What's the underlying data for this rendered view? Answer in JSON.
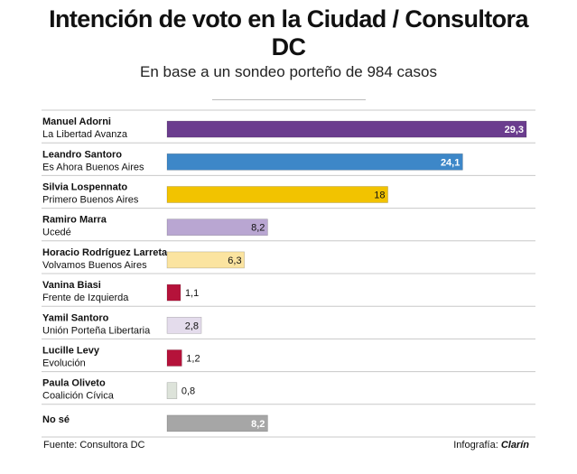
{
  "header": {
    "title_line1": "Intención de voto en la Ciudad / Consultora",
    "title_line2": "DC",
    "subtitle": "En base a un sondeo porteño de 984 casos"
  },
  "footer": {
    "source": "Fuente: Consultora DC",
    "credit_prefix": "Infografía: ",
    "credit_brand": "Clarín"
  },
  "chart_data": {
    "type": "bar",
    "orientation": "horizontal",
    "title": "Intención de voto en la Ciudad / Consultora DC",
    "subtitle": "En base a un sondeo porteño de 984 casos",
    "xlim": [
      0,
      29.3
    ],
    "grid": false,
    "rows": [
      {
        "name": "Manuel Adorni",
        "party": "La Libertad Avanza",
        "value": 29.3,
        "label": "29,3",
        "color": "#6b3d8e",
        "label_inside": true,
        "label_dark": false
      },
      {
        "name": "Leandro Santoro",
        "party": "Es Ahora Buenos Aires",
        "value": 24.1,
        "label": "24,1",
        "color": "#3d87c8",
        "label_inside": true,
        "label_dark": false
      },
      {
        "name": "Silvia Lospennato",
        "party": "Primero Buenos Aires",
        "value": 18,
        "label": "18",
        "color": "#f2c300",
        "label_inside": true,
        "label_dark": true
      },
      {
        "name": "Ramiro Marra",
        "party": "Ucedé",
        "value": 8.2,
        "label": "8,2",
        "color": "#b9a6d2",
        "label_inside": true,
        "label_dark": true
      },
      {
        "name": "Horacio Rodríguez Larreta",
        "party": "Volvamos Buenos Aires",
        "value": 6.3,
        "label": "6,3",
        "color": "#fbe4a0",
        "label_inside": true,
        "label_dark": true
      },
      {
        "name": "Vanina Biasi",
        "party": "Frente de Izquierda",
        "value": 1.1,
        "label": "1,1",
        "color": "#b5123a",
        "label_inside": false,
        "label_dark": true
      },
      {
        "name": "Yamil Santoro",
        "party": "Unión Porteña Libertaria",
        "value": 2.8,
        "label": "2,8",
        "color": "#e4dcec",
        "label_inside": true,
        "label_dark": true
      },
      {
        "name": "Lucille Levy",
        "party": "Evolución",
        "value": 1.2,
        "label": "1,2",
        "color": "#b5123a",
        "label_inside": false,
        "label_dark": true
      },
      {
        "name": "Paula Oliveto",
        "party": "Coalición Cívica",
        "value": 0.8,
        "label": "0,8",
        "color": "#dde3da",
        "label_inside": false,
        "label_dark": true
      },
      {
        "name": "No sé",
        "party": "",
        "value": 8.2,
        "label": "8,2",
        "color": "#a6a6a6",
        "label_inside": true,
        "label_dark": false
      }
    ]
  }
}
